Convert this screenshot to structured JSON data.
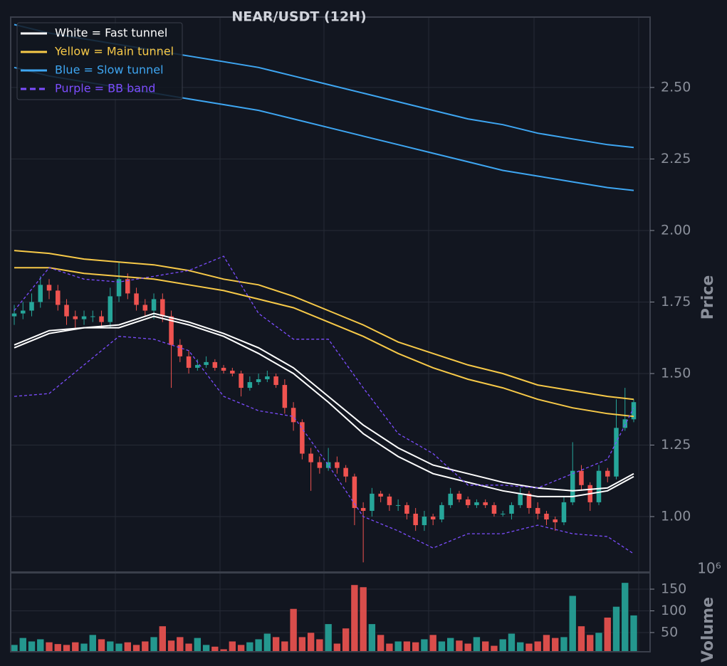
{
  "chart_data": {
    "type": "candlestick",
    "title": "NEAR/USDT (12H)",
    "ylabel": "Price",
    "ylim": [
      0.806,
      2.746
    ],
    "yticks": [
      {
        "value": 1.0,
        "label": "1.00"
      },
      {
        "value": 1.25,
        "label": "1.25"
      },
      {
        "value": 1.5,
        "label": "1.50"
      },
      {
        "value": 1.75,
        "label": "1.75"
      },
      {
        "value": 2.0,
        "label": "2.00"
      },
      {
        "value": 2.25,
        "label": "2.25"
      },
      {
        "value": 2.5,
        "label": "2.50"
      }
    ],
    "grid": true,
    "up_color": "#26a69a",
    "down_color": "#ef5350",
    "open": [
      1.7,
      1.71,
      1.72,
      1.75,
      1.81,
      1.79,
      1.74,
      1.7,
      1.69,
      1.7,
      1.7,
      1.68,
      1.77,
      1.83,
      1.78,
      1.74,
      1.72,
      1.76,
      1.7,
      1.6,
      1.56,
      1.52,
      1.53,
      1.54,
      1.52,
      1.51,
      1.5,
      1.45,
      1.47,
      1.48,
      1.49,
      1.46,
      1.38,
      1.33,
      1.22,
      1.19,
      1.17,
      1.19,
      1.17,
      1.14,
      1.03,
      1.02,
      1.08,
      1.07,
      1.04,
      1.04,
      1.01,
      0.97,
      1.0,
      0.99,
      1.04,
      1.08,
      1.06,
      1.04,
      1.05,
      1.04,
      1.01,
      1.01,
      1.04,
      1.08,
      1.03,
      1.01,
      0.99,
      0.98,
      1.05,
      1.16,
      1.11,
      1.05,
      1.16,
      1.14,
      1.31,
      1.34
    ],
    "high": [
      1.74,
      1.75,
      1.78,
      1.84,
      1.83,
      1.81,
      1.76,
      1.72,
      1.72,
      1.72,
      1.72,
      1.8,
      1.89,
      1.85,
      1.8,
      1.76,
      1.78,
      1.78,
      1.72,
      1.62,
      1.58,
      1.55,
      1.56,
      1.55,
      1.53,
      1.52,
      1.51,
      1.49,
      1.5,
      1.51,
      1.5,
      1.48,
      1.4,
      1.34,
      1.24,
      1.21,
      1.24,
      1.21,
      1.18,
      1.15,
      1.05,
      1.1,
      1.09,
      1.08,
      1.06,
      1.05,
      1.03,
      1.02,
      1.01,
      1.05,
      1.1,
      1.09,
      1.07,
      1.06,
      1.06,
      1.05,
      1.02,
      1.05,
      1.1,
      1.09,
      1.05,
      1.02,
      1.0,
      1.07,
      1.26,
      1.18,
      1.12,
      1.18,
      1.17,
      1.41,
      1.45,
      1.41
    ],
    "low": [
      1.67,
      1.69,
      1.7,
      1.73,
      1.76,
      1.72,
      1.67,
      1.66,
      1.67,
      1.68,
      1.66,
      1.66,
      1.75,
      1.76,
      1.72,
      1.7,
      1.69,
      1.68,
      1.45,
      1.54,
      1.5,
      1.51,
      1.52,
      1.51,
      1.5,
      1.49,
      1.42,
      1.44,
      1.46,
      1.47,
      1.45,
      1.36,
      1.3,
      1.2,
      1.09,
      1.15,
      1.16,
      1.15,
      1.12,
      0.97,
      0.84,
      1.0,
      1.05,
      1.02,
      1.02,
      0.99,
      0.95,
      0.95,
      0.97,
      0.98,
      1.03,
      1.05,
      1.03,
      1.03,
      1.03,
      1.0,
      1.0,
      0.99,
      1.03,
      1.01,
      0.99,
      0.97,
      0.95,
      0.97,
      1.04,
      1.09,
      1.02,
      1.04,
      1.12,
      1.13,
      1.3,
      1.33
    ],
    "close": [
      1.71,
      1.72,
      1.75,
      1.81,
      1.79,
      1.74,
      1.7,
      1.69,
      1.7,
      1.7,
      1.68,
      1.77,
      1.83,
      1.78,
      1.74,
      1.72,
      1.76,
      1.7,
      1.6,
      1.56,
      1.52,
      1.53,
      1.54,
      1.52,
      1.51,
      1.5,
      1.45,
      1.47,
      1.48,
      1.49,
      1.46,
      1.38,
      1.33,
      1.22,
      1.19,
      1.17,
      1.19,
      1.17,
      1.14,
      1.03,
      1.02,
      1.08,
      1.07,
      1.04,
      1.04,
      1.01,
      0.97,
      1.0,
      0.99,
      1.04,
      1.08,
      1.06,
      1.04,
      1.05,
      1.04,
      1.01,
      1.01,
      1.04,
      1.08,
      1.03,
      1.01,
      0.99,
      0.98,
      1.05,
      1.16,
      1.11,
      1.05,
      1.16,
      1.14,
      1.31,
      1.34,
      1.4
    ],
    "overlays": {
      "x": [
        0,
        4,
        8,
        12,
        16,
        20,
        24,
        28,
        32,
        36,
        40,
        44,
        48,
        52,
        56,
        60,
        64,
        68,
        71
      ],
      "series": [
        {
          "name": "White = Fast tunnel",
          "color": "#ffffff",
          "dashed": false,
          "lines": [
            [
              1.6,
              1.65,
              1.66,
              1.67,
              1.71,
              1.68,
              1.64,
              1.59,
              1.52,
              1.42,
              1.32,
              1.24,
              1.18,
              1.15,
              1.12,
              1.1,
              1.09,
              1.1,
              1.15
            ],
            [
              1.59,
              1.64,
              1.66,
              1.66,
              1.7,
              1.67,
              1.63,
              1.57,
              1.5,
              1.4,
              1.29,
              1.21,
              1.15,
              1.12,
              1.09,
              1.07,
              1.07,
              1.09,
              1.14
            ]
          ]
        },
        {
          "name": "Yellow = Main tunnel",
          "color": "#f7c948",
          "dashed": false,
          "lines": [
            [
              1.93,
              1.92,
              1.9,
              1.89,
              1.88,
              1.86,
              1.83,
              1.81,
              1.77,
              1.72,
              1.67,
              1.61,
              1.57,
              1.53,
              1.5,
              1.46,
              1.44,
              1.42,
              1.41
            ],
            [
              1.87,
              1.87,
              1.85,
              1.84,
              1.83,
              1.81,
              1.79,
              1.76,
              1.73,
              1.68,
              1.63,
              1.57,
              1.52,
              1.48,
              1.45,
              1.41,
              1.38,
              1.36,
              1.35
            ]
          ]
        },
        {
          "name": "Blue = Slow tunnel",
          "color": "#3ea6f2",
          "dashed": false,
          "lines": [
            [
              2.72,
              2.69,
              2.67,
              2.65,
              2.63,
              2.61,
              2.59,
              2.57,
              2.54,
              2.51,
              2.48,
              2.45,
              2.42,
              2.39,
              2.37,
              2.34,
              2.32,
              2.3,
              2.29
            ],
            [
              2.57,
              2.54,
              2.52,
              2.5,
              2.48,
              2.46,
              2.44,
              2.42,
              2.39,
              2.36,
              2.33,
              2.3,
              2.27,
              2.24,
              2.21,
              2.19,
              2.17,
              2.15,
              2.14
            ]
          ]
        },
        {
          "name": "Purple = BB band",
          "color": "#7c4dff",
          "dashed": true,
          "lines": [
            [
              1.72,
              1.87,
              1.83,
              1.82,
              1.84,
              1.86,
              1.91,
              1.71,
              1.62,
              1.62,
              1.45,
              1.29,
              1.22,
              1.11,
              1.11,
              1.1,
              1.15,
              1.2,
              1.38
            ],
            [
              1.42,
              1.43,
              1.53,
              1.63,
              1.62,
              1.58,
              1.42,
              1.37,
              1.35,
              1.18,
              1.0,
              0.95,
              0.89,
              0.94,
              0.94,
              0.97,
              0.94,
              0.93,
              0.87
            ]
          ]
        }
      ]
    },
    "legend_loc": "upper left",
    "volume": {
      "type": "bar",
      "ylabel": "Volume",
      "offset_label": "10⁶",
      "ylim": [
        5.7,
        187.7
      ],
      "yticks": [
        50,
        100,
        150
      ],
      "values": [
        22,
        38,
        30,
        35,
        28,
        24,
        22,
        28,
        25,
        45,
        35,
        30,
        25,
        28,
        22,
        30,
        40,
        65,
        32,
        40,
        25,
        38,
        22,
        18,
        12,
        30,
        22,
        28,
        35,
        48,
        40,
        30,
        105,
        40,
        50,
        35,
        70,
        25,
        60,
        160,
        155,
        70,
        45,
        25,
        30,
        30,
        28,
        35,
        45,
        30,
        38,
        32,
        25,
        40,
        30,
        20,
        35,
        48,
        28,
        25,
        30,
        45,
        38,
        40,
        135,
        65,
        45,
        50,
        85,
        110,
        165,
        90
      ]
    }
  }
}
